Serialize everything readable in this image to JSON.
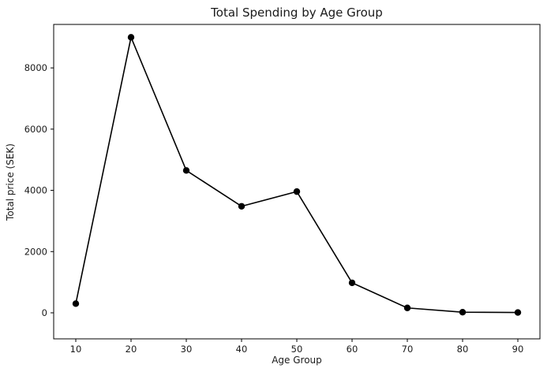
{
  "chart_data": {
    "type": "line",
    "title": "Total Spending by Age Group",
    "xlabel": "Age Group",
    "ylabel": "Total price (SEK)",
    "x": [
      10,
      20,
      30,
      40,
      50,
      60,
      70,
      80,
      90
    ],
    "values": [
      300,
      9000,
      4650,
      3480,
      3960,
      980,
      160,
      20,
      10
    ],
    "xticks": [
      10,
      20,
      30,
      40,
      50,
      60,
      70,
      80,
      90
    ],
    "yticks": [
      0,
      2000,
      4000,
      6000,
      8000
    ],
    "xlim": [
      6,
      94
    ],
    "ylim": [
      -850,
      9420
    ],
    "line_color": "#000000",
    "marker": "circle",
    "marker_color": "#000000",
    "text_color": "#1a1a1a",
    "background": "#ffffff",
    "grid": false,
    "legend": false
  }
}
